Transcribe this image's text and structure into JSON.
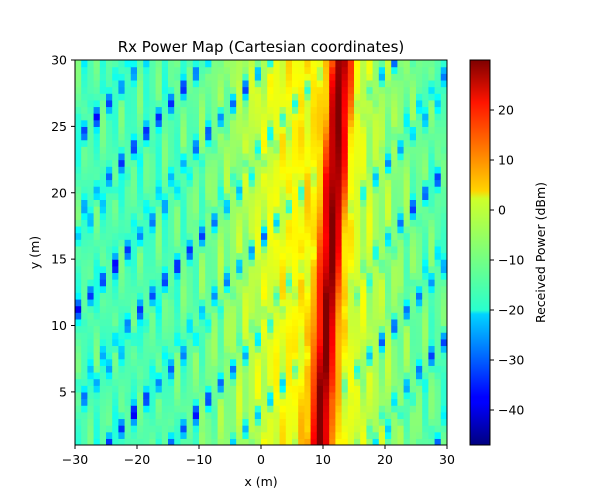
{
  "chart_data": {
    "type": "heatmap",
    "title": "Rx Power Map (Cartesian coordinates)",
    "xlabel": "x (m)",
    "ylabel": "y (m)",
    "xlim": [
      -30,
      30
    ],
    "ylim": [
      1,
      30
    ],
    "xticks": [
      -30,
      -20,
      -10,
      0,
      10,
      20,
      30
    ],
    "yticks": [
      5,
      10,
      15,
      20,
      25,
      30
    ],
    "colorbar": {
      "label": "Received Power (dBm)",
      "colormap": "jet",
      "range": [
        -47,
        30
      ],
      "ticks": [
        -40,
        -30,
        -20,
        -10,
        0,
        10,
        20
      ]
    },
    "features": {
      "beam_peak_dbm": 30,
      "beam_x_at_bottom": 9.5,
      "beam_x_at_top": 13,
      "beam_width_m": 1.8,
      "background_level_dbm": -12,
      "null_level_dbm": -40
    }
  }
}
